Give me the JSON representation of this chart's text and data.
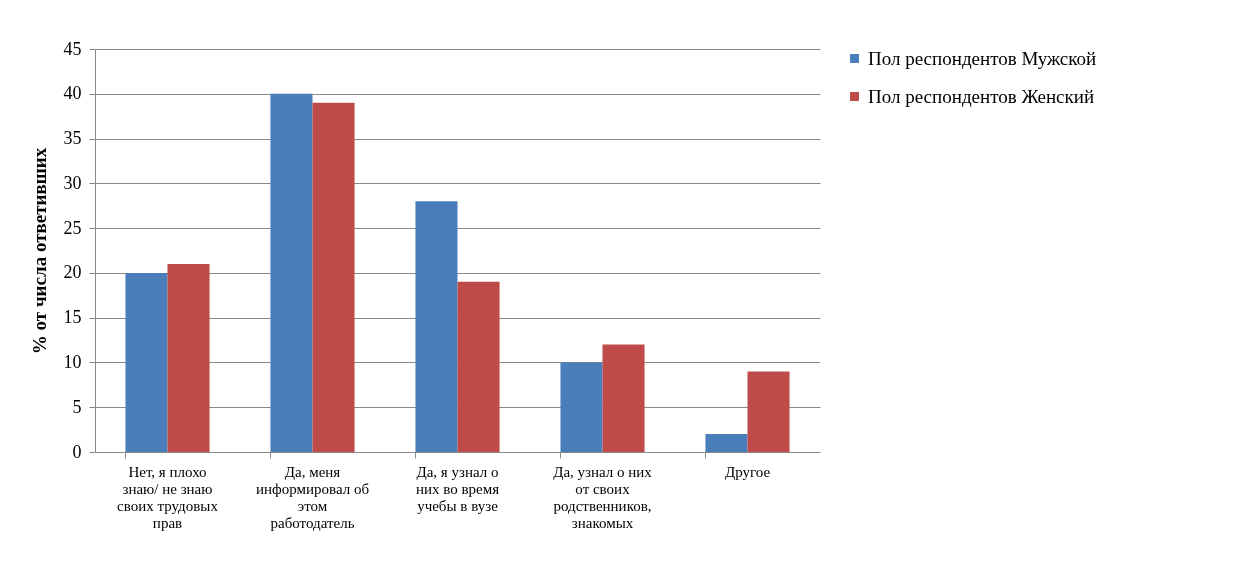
{
  "chart_data": {
    "type": "bar",
    "ylabel": "% от числа ответивших",
    "categories": [
      "Нет, я плохо знаю/ не знаю своих трудовых прав",
      "Да, меня информировал об этом работодатель",
      "Да, я узнал о них во время учебы в вузе",
      "Да, узнал о них от своих родственников, знакомых",
      "Другое"
    ],
    "series": [
      {
        "name": "Пол респондентов Мужской",
        "color": "#4a7ebb",
        "values": [
          20,
          40,
          28,
          10,
          2
        ]
      },
      {
        "name": "Пол респондентов Женский",
        "color": "#be4b48",
        "values": [
          21,
          39,
          19,
          12,
          9
        ]
      }
    ],
    "ylim": [
      0,
      45
    ],
    "yticks": [
      0,
      5,
      10,
      15,
      20,
      25,
      30,
      35,
      40,
      45
    ],
    "grid": "y",
    "legend": "right"
  }
}
